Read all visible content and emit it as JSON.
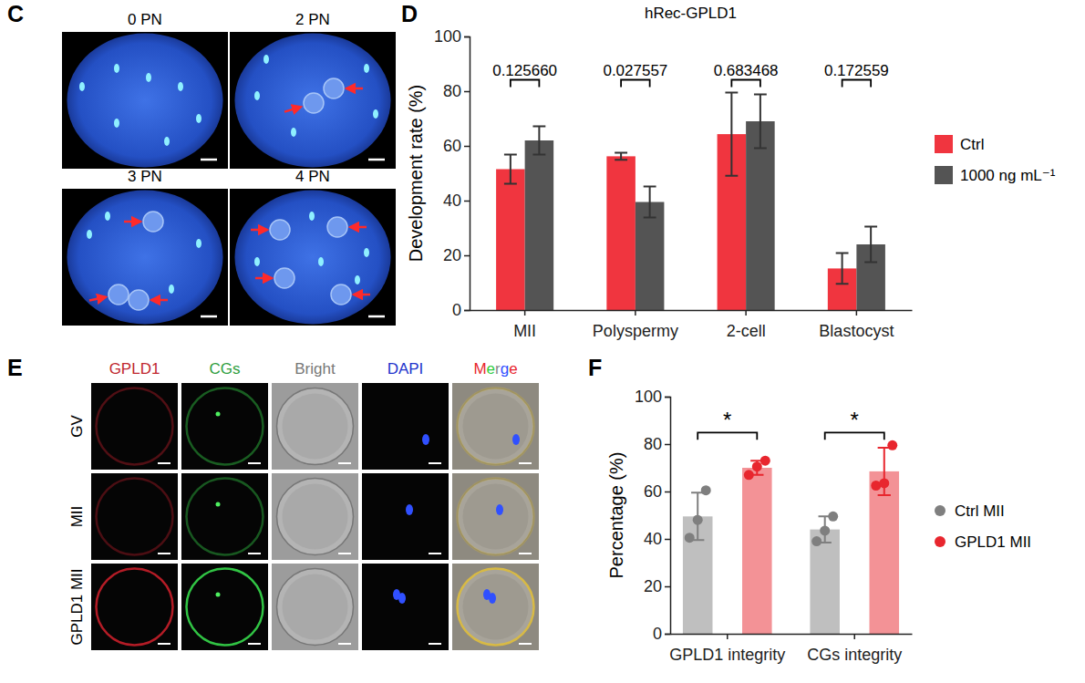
{
  "chart_data": [
    {
      "panel": "D",
      "type": "bar",
      "title": "hRec-GPLD1",
      "categories": [
        "MII",
        "Polyspermy",
        "2-cell",
        "Blastocyst"
      ],
      "series": [
        {
          "name": "Ctrl",
          "color": "#f0353f",
          "values": [
            51.5,
            56.2,
            64.3,
            15.2
          ],
          "errors": [
            5.3,
            1.3,
            15.2,
            5.6
          ]
        },
        {
          "name": "1000 ng mL⁻¹",
          "color": "#545454",
          "values": [
            62,
            39.5,
            69,
            24
          ],
          "errors": [
            5.2,
            5.7,
            9.8,
            6.5
          ]
        }
      ],
      "annotations": [
        "0.125660",
        "0.027557",
        "0.683468",
        "0.172559"
      ],
      "y_label": "Development rate (%)",
      "ylim": [
        0,
        100
      ],
      "yticks": [
        0,
        20,
        40,
        60,
        80,
        100
      ],
      "legend": "right"
    },
    {
      "panel": "F",
      "type": "bar",
      "categories": [
        "GPLD1 integrity",
        "CGs integrity"
      ],
      "series": [
        {
          "name": "Ctrl MII",
          "color": "#7f7f7f",
          "values": [
            49.5,
            44
          ],
          "errors": [
            10,
            5.5
          ],
          "points": [
            [
              40.5,
              48,
              60.5
            ],
            [
              39,
              43.5,
              49.5
            ]
          ]
        },
        {
          "name": "GPLD1 MII",
          "color": "#e8262e",
          "values": [
            70,
            68.5
          ],
          "errors": [
            3,
            10
          ],
          "points": [
            [
              67,
              70.5,
              73
            ],
            [
              62.5,
              63.5,
              79.5
            ]
          ]
        }
      ],
      "annotations": [
        "*",
        "*"
      ],
      "y_label": "Percentage (%)",
      "ylim": [
        0,
        100
      ],
      "yticks": [
        0,
        20,
        40,
        60,
        80,
        100
      ],
      "legend": "right",
      "marker": "circle"
    }
  ],
  "images": {
    "C": {
      "panel": "C",
      "labels": [
        "0 PN",
        "2 PN",
        "3 PN",
        "4 PN"
      ]
    },
    "E": {
      "panel": "E",
      "columns": [
        "GPLD1",
        "CGs",
        "Bright",
        "DAPI",
        "Merge"
      ],
      "rows": [
        "GV",
        "MII",
        "GPLD1 MII"
      ]
    }
  }
}
